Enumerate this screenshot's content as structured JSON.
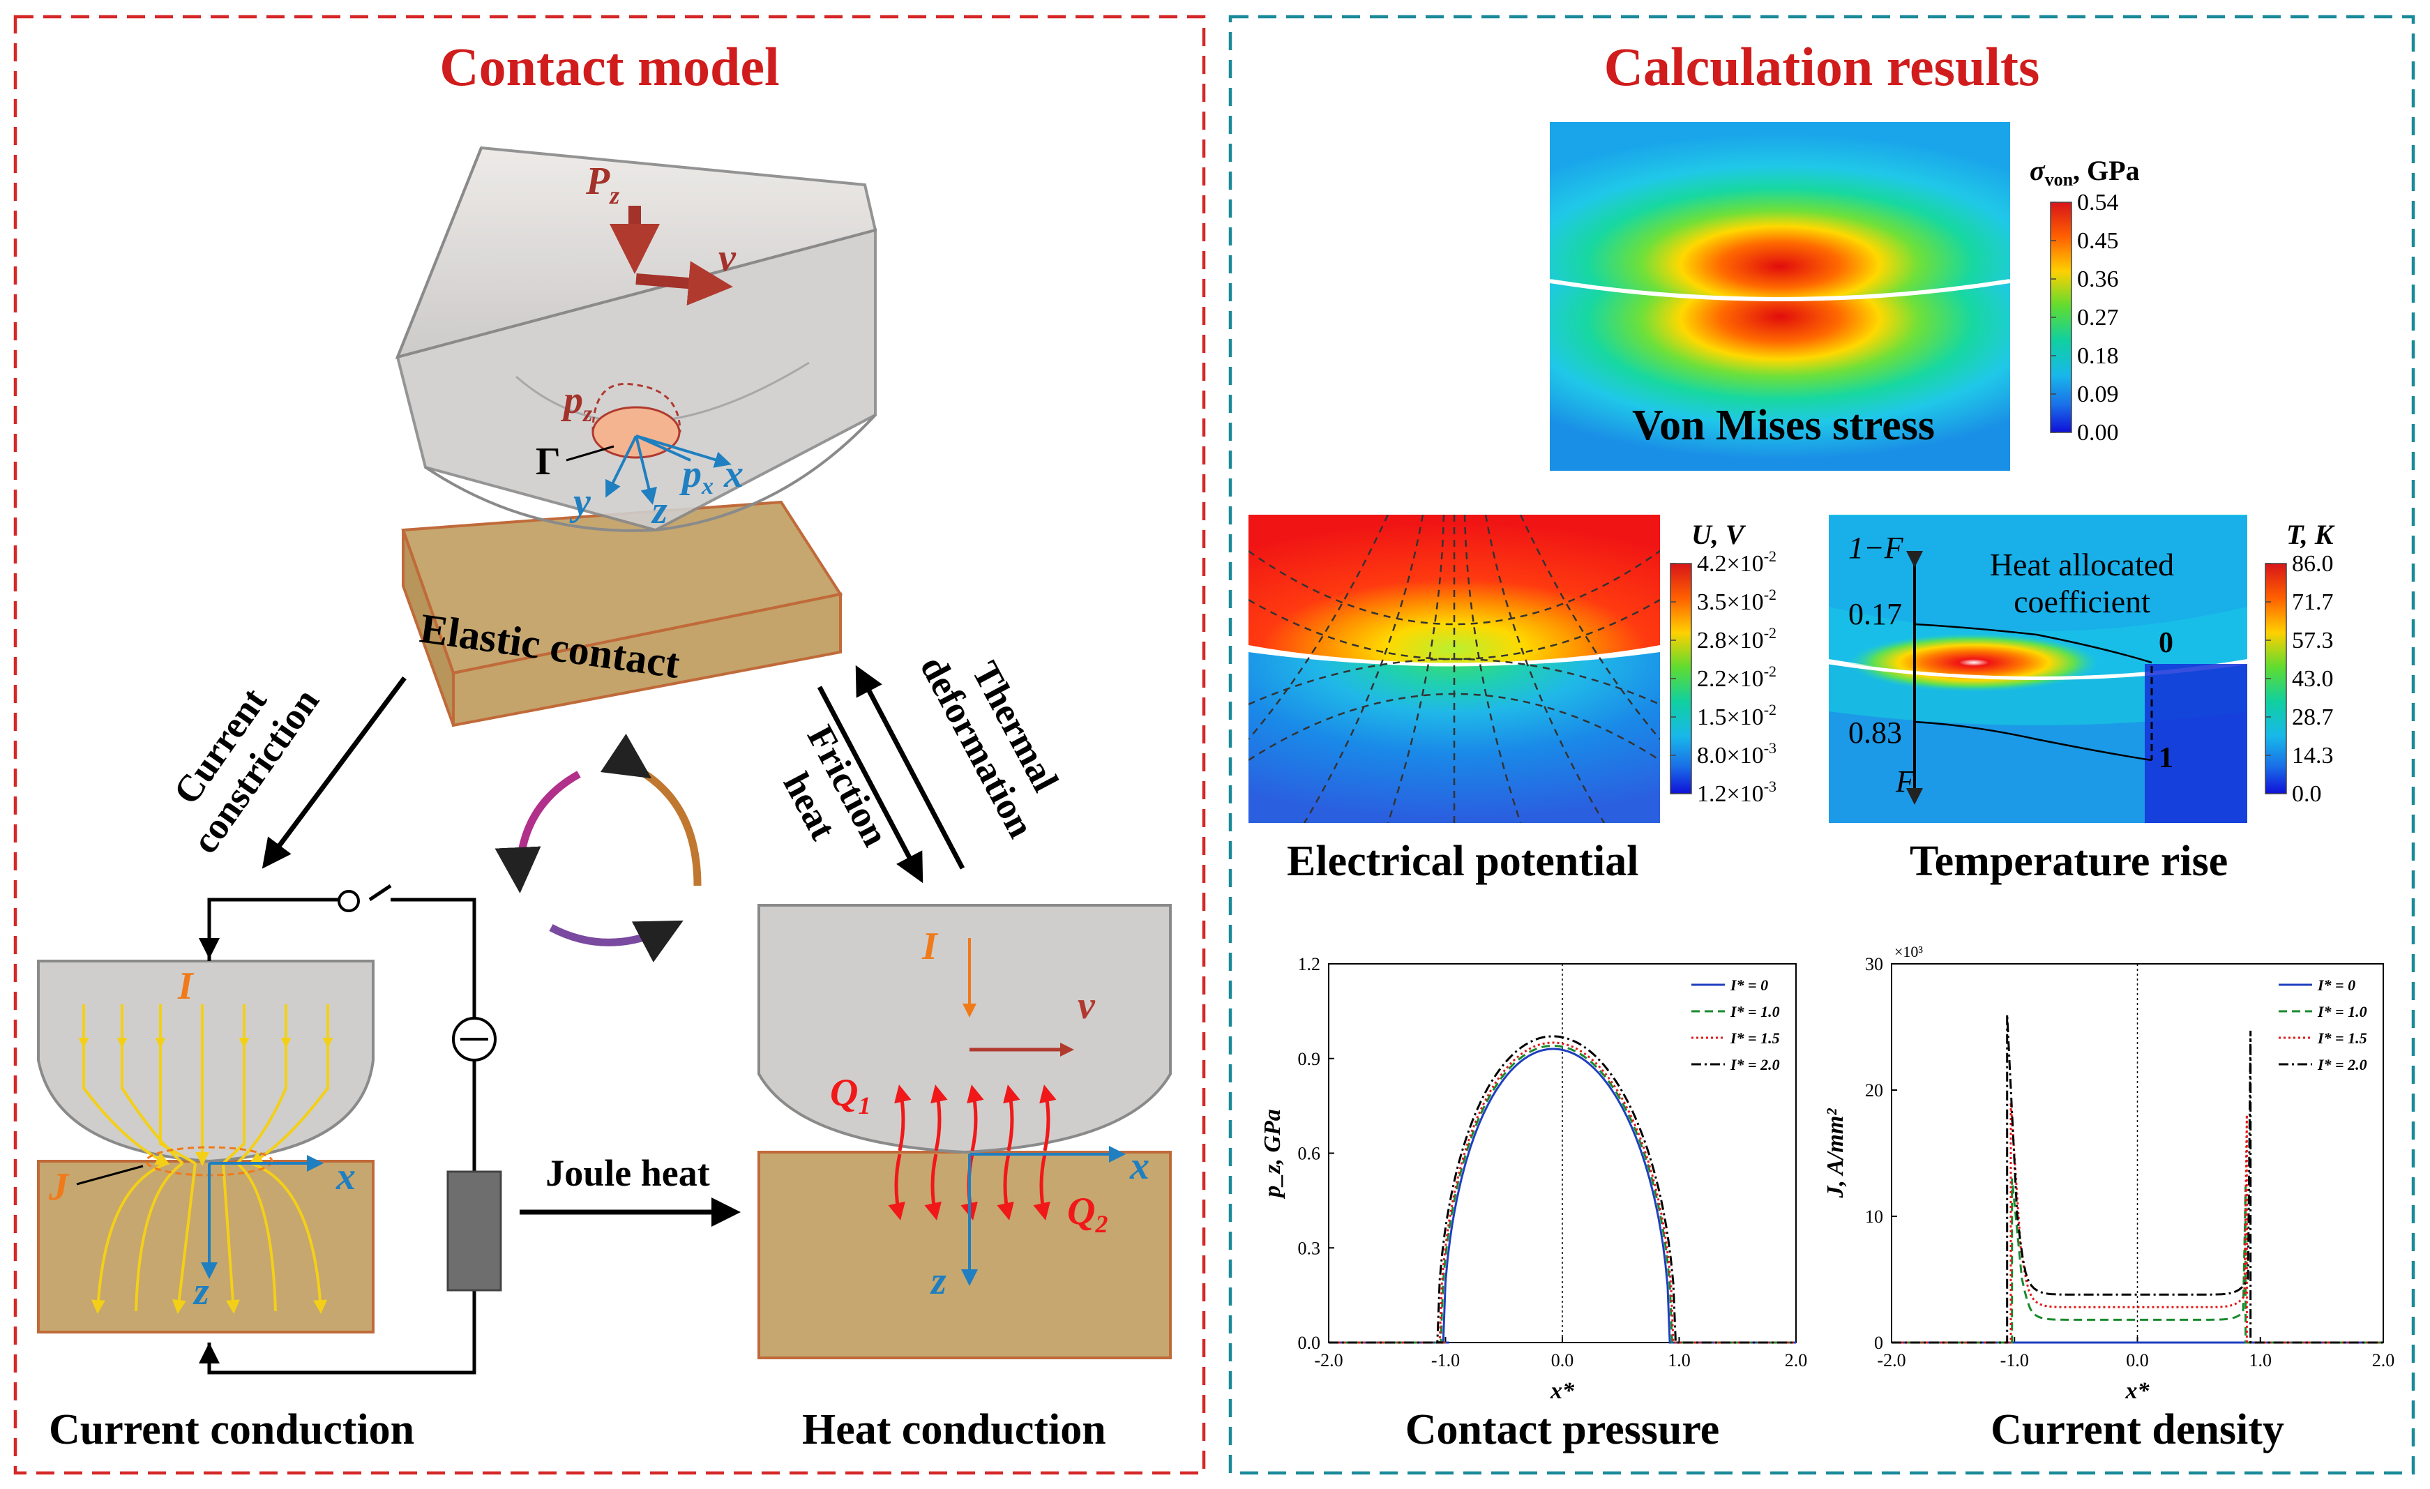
{
  "left_panel": {
    "title": "Contact model",
    "block_label": "Elastic contact",
    "label_Pz": "P",
    "label_Pz_sub": "z",
    "label_v_top": "v",
    "label_pz": "p",
    "label_pz_sub": "z",
    "label_px": "p",
    "label_px_sub": "x",
    "label_x": "x",
    "label_y": "y",
    "label_z": "z",
    "label_gamma": "Γ",
    "arrow_left_line1": "Current",
    "arrow_left_line2": "constriction",
    "arrow_right_a_line1": "Thermal",
    "arrow_right_a_line2": "deformation",
    "arrow_right_b_line1": "Friction",
    "arrow_right_b_line2": "heat",
    "joule_label": "Joule heat",
    "current_conduction": {
      "caption": "Current conduction",
      "label_I": "I",
      "label_J": "J",
      "label_x": "x",
      "label_z": "z"
    },
    "heat_conduction": {
      "caption": "Heat conduction",
      "label_I": "I",
      "label_v": "v",
      "label_Q1": "Q",
      "label_Q1_sub": "1",
      "label_Q2": "Q",
      "label_Q2_sub": "2",
      "label_x": "x",
      "label_z": "z"
    }
  },
  "right_panel": {
    "title": "Calculation results",
    "von_mises": {
      "label": "Von Mises stress",
      "colorbar_title_sym": "σ",
      "colorbar_title_sub": "von",
      "colorbar_title_unit": ", GPa",
      "ticks": [
        "0.54",
        "0.45",
        "0.36",
        "0.27",
        "0.18",
        "0.09",
        "0.00"
      ]
    },
    "electrical": {
      "caption": "Electrical potential",
      "colorbar_title": "U, V",
      "ticks": [
        "4.2×10",
        "3.5×10",
        "2.8×10",
        "2.2×10",
        "1.5×10",
        "8.0×10",
        "1.2×10"
      ],
      "tick_exps": [
        "-2",
        "-2",
        "-2",
        "-2",
        "-2",
        "-3",
        "-3"
      ]
    },
    "temperature": {
      "caption": "Temperature rise",
      "colorbar_title": "T, K",
      "ticks": [
        "86.0",
        "71.7",
        "57.3",
        "43.0",
        "28.7",
        "14.3",
        "0.0"
      ],
      "heat_line1": "Heat allocated",
      "heat_line2": "coefficient",
      "label_1mF": "1−F",
      "label_F": "F",
      "val_017": "0.17",
      "val_083": "0.83",
      "val_0": "0",
      "val_1": "1"
    },
    "legend_labels": [
      "I* = 0",
      "I* = 1.0",
      "I* = 1.5",
      "I* = 2.0"
    ]
  },
  "chart_data": [
    {
      "type": "line",
      "title": "Contact pressure",
      "xlabel": "x*",
      "ylabel": "p_z, GPa",
      "xlim": [
        -2.0,
        2.0
      ],
      "ylim": [
        0.0,
        1.2
      ],
      "xticks": [
        "-2.0",
        "-1.0",
        "0.0",
        "1.0",
        "2.0"
      ],
      "yticks": [
        "0.0",
        "0.3",
        "0.6",
        "0.9",
        "1.2"
      ],
      "series": [
        {
          "name": "I* = 0",
          "a": 0.97,
          "peak": 0.93,
          "color": "#1f3fbf",
          "dash": ""
        },
        {
          "name": "I* = 1.0",
          "a": 0.99,
          "peak": 0.94,
          "color": "#1a8a2e",
          "dash": "12,7"
        },
        {
          "name": "I* = 1.5",
          "a": 1.0,
          "peak": 0.95,
          "color": "#e01818",
          "dash": "3,4"
        },
        {
          "name": "I* = 2.0",
          "a": 1.02,
          "peak": 0.97,
          "color": "#000000",
          "dash": "14,5,3,5"
        }
      ]
    },
    {
      "type": "line",
      "title": "Current density",
      "xlabel": "x*",
      "ylabel": "J, A/mm²",
      "y_multiplier": "×10³",
      "xlim": [
        -2.0,
        2.0
      ],
      "ylim": [
        0,
        30
      ],
      "xticks": [
        "-2.0",
        "-1.0",
        "0.0",
        "1.0",
        "2.0"
      ],
      "yticks": [
        "0",
        "10",
        "20",
        "30"
      ],
      "series": [
        {
          "name": "I* = 0",
          "base": 0.0,
          "peak": 0.0,
          "a": 1.0,
          "color": "#1f3fbf",
          "dash": ""
        },
        {
          "name": "I* = 1.0",
          "base": 1.8,
          "peak": 13.0,
          "a": 0.96,
          "color": "#1a8a2e",
          "dash": "12,7"
        },
        {
          "name": "I* = 1.5",
          "base": 2.8,
          "peak": 19.0,
          "a": 0.97,
          "color": "#e01818",
          "dash": "3,4"
        },
        {
          "name": "I* = 2.0",
          "base": 3.8,
          "peak": 26.0,
          "a": 1.0,
          "color": "#000000",
          "dash": "14,5,3,5"
        }
      ]
    }
  ]
}
